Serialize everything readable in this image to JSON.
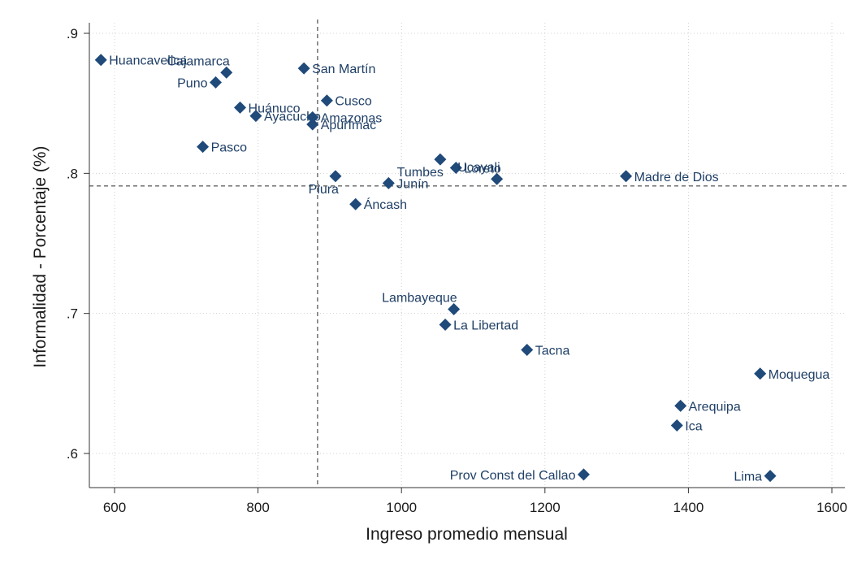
{
  "chart_data": {
    "type": "scatter",
    "xlabel": "Ingreso promedio mensual",
    "ylabel": "Informalidad - Porcentaje (%)",
    "xlim": [
      560,
      1600
    ],
    "ylim": [
      0.58,
      0.9
    ],
    "x_ticks": [
      600,
      800,
      1000,
      1200,
      1400,
      1600
    ],
    "x_tick_labels": [
      "600",
      "800",
      "1000",
      "1200",
      "1400",
      "1600"
    ],
    "y_ticks": [
      0.6,
      0.7,
      0.8,
      0.9
    ],
    "y_tick_labels": [
      ".6",
      ".7",
      ".8",
      ".9"
    ],
    "grid": true,
    "reference_lines": {
      "x": 883,
      "y": 0.791
    },
    "marker_color": "#1f4a7a",
    "points": [
      {
        "label": "Huancavelica",
        "x": 581,
        "y": 0.881,
        "pos": "right"
      },
      {
        "label": "Cajamarca",
        "x": 756,
        "y": 0.872,
        "pos": "above-left"
      },
      {
        "label": "Puno",
        "x": 741,
        "y": 0.865,
        "pos": "left"
      },
      {
        "label": "San Martín",
        "x": 864,
        "y": 0.875,
        "pos": "right"
      },
      {
        "label": "Cusco",
        "x": 896,
        "y": 0.852,
        "pos": "right"
      },
      {
        "label": "Huánuco",
        "x": 775,
        "y": 0.847,
        "pos": "right"
      },
      {
        "label": "Ayacucho",
        "x": 797,
        "y": 0.841,
        "pos": "right"
      },
      {
        "label": "Amazonas",
        "x": 876,
        "y": 0.84,
        "pos": "right"
      },
      {
        "label": "Apurímac",
        "x": 876,
        "y": 0.835,
        "pos": "right"
      },
      {
        "label": "Pasco",
        "x": 723,
        "y": 0.819,
        "pos": "right"
      },
      {
        "label": "Piura",
        "x": 908,
        "y": 0.798,
        "pos": "below-left"
      },
      {
        "label": "Junín",
        "x": 982,
        "y": 0.793,
        "pos": "right"
      },
      {
        "label": "Áncash",
        "x": 936,
        "y": 0.778,
        "pos": "right"
      },
      {
        "label": "Tumbes",
        "x": 1054,
        "y": 0.81,
        "pos": "below-left"
      },
      {
        "label": "Loreto",
        "x": 1076,
        "y": 0.804,
        "pos": "right"
      },
      {
        "label": "Ucayali",
        "x": 1133,
        "y": 0.796,
        "pos": "above-left"
      },
      {
        "label": "Madre de Dios",
        "x": 1313,
        "y": 0.798,
        "pos": "right"
      },
      {
        "label": "Lambayeque",
        "x": 1073,
        "y": 0.703,
        "pos": "above-left"
      },
      {
        "label": "La Libertad",
        "x": 1061,
        "y": 0.692,
        "pos": "right"
      },
      {
        "label": "Tacna",
        "x": 1175,
        "y": 0.674,
        "pos": "right"
      },
      {
        "label": "Moquegua",
        "x": 1500,
        "y": 0.657,
        "pos": "right"
      },
      {
        "label": "Arequipa",
        "x": 1389,
        "y": 0.634,
        "pos": "right"
      },
      {
        "label": "Ica",
        "x": 1384,
        "y": 0.62,
        "pos": "right"
      },
      {
        "label": "Prov Const del Callao",
        "x": 1254,
        "y": 0.585,
        "pos": "left"
      },
      {
        "label": "Lima",
        "x": 1514,
        "y": 0.584,
        "pos": "left"
      }
    ]
  }
}
